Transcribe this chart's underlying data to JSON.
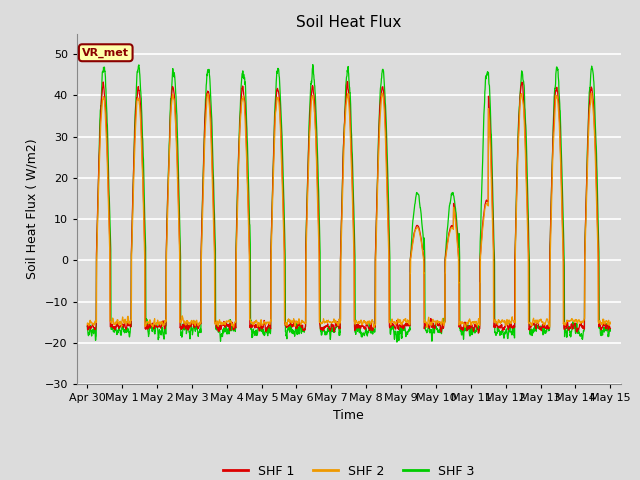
{
  "title": "Soil Heat Flux",
  "ylabel": "Soil Heat Flux ( W/m2)",
  "xlabel": "Time",
  "ylim": [
    -30,
    55
  ],
  "yticks": [
    -30,
    -20,
    -10,
    0,
    10,
    20,
    30,
    40,
    50
  ],
  "colors": {
    "SHF 1": "#dd0000",
    "SHF 2": "#ee9900",
    "SHF 3": "#00cc00"
  },
  "legend_labels": [
    "SHF 1",
    "SHF 2",
    "SHF 3"
  ],
  "bg_color": "#dcdcdc",
  "fig_bg": "#dcdcdc",
  "watermark": "VR_met",
  "n_days": 15,
  "points_per_day": 144,
  "title_fontsize": 11,
  "tick_fontsize": 8,
  "label_fontsize": 9
}
